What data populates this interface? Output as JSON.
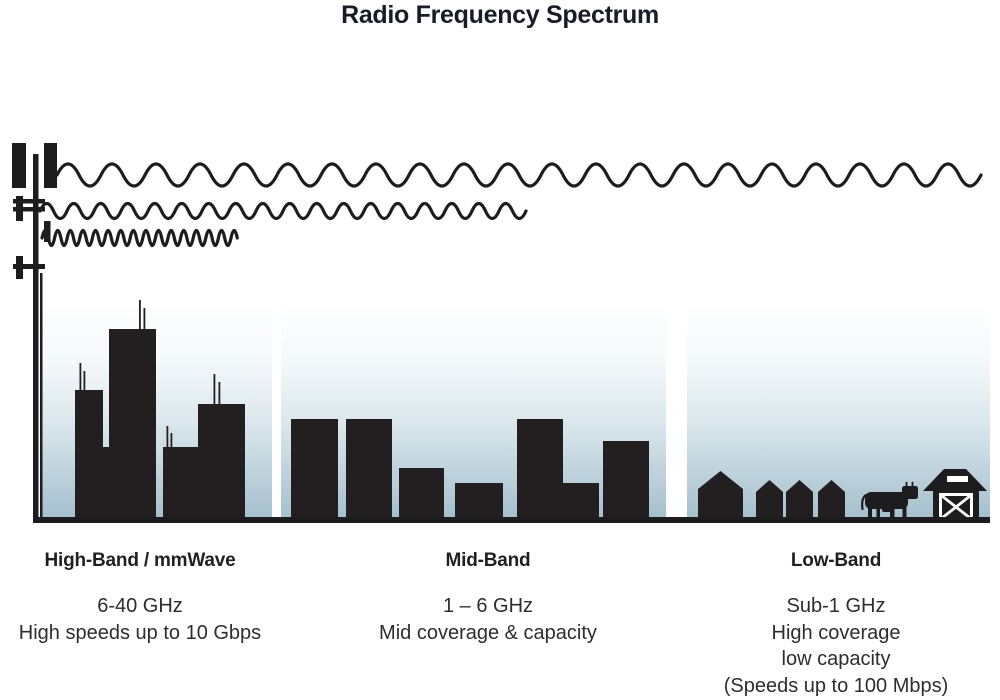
{
  "title": "Radio Frequency Spectrum",
  "bands": [
    {
      "name": "High-Band / mmWave",
      "details": [
        "6-40 GHz",
        "High speeds up to 10 Gbps"
      ]
    },
    {
      "name": "Mid-Band",
      "details": [
        "1 – 6 GHz",
        "Mid coverage & capacity"
      ]
    },
    {
      "name": "Low-Band",
      "details": [
        "Sub-1 GHz",
        "High coverage",
        "low capacity",
        "(Speeds up to 100 Mbps)"
      ]
    }
  ],
  "colors": {
    "ink": "#231f20",
    "title_text": "#171c26",
    "detail_text": "#2d2d2d",
    "sky_gradient_top": "#ffffff",
    "sky_gradient_mid": "#dce8ed",
    "sky_gradient_bottom": "#a5c0ce"
  },
  "graphics": {
    "transmitter": "cell-tower-icon",
    "waves": [
      "long-wavelength-wave",
      "medium-wavelength-wave",
      "short-wavelength-wave"
    ],
    "scenes": [
      "city-skyline",
      "mid-rise-buildings",
      "suburb-houses",
      "cow",
      "barn"
    ],
    "ground": "ground-line"
  }
}
